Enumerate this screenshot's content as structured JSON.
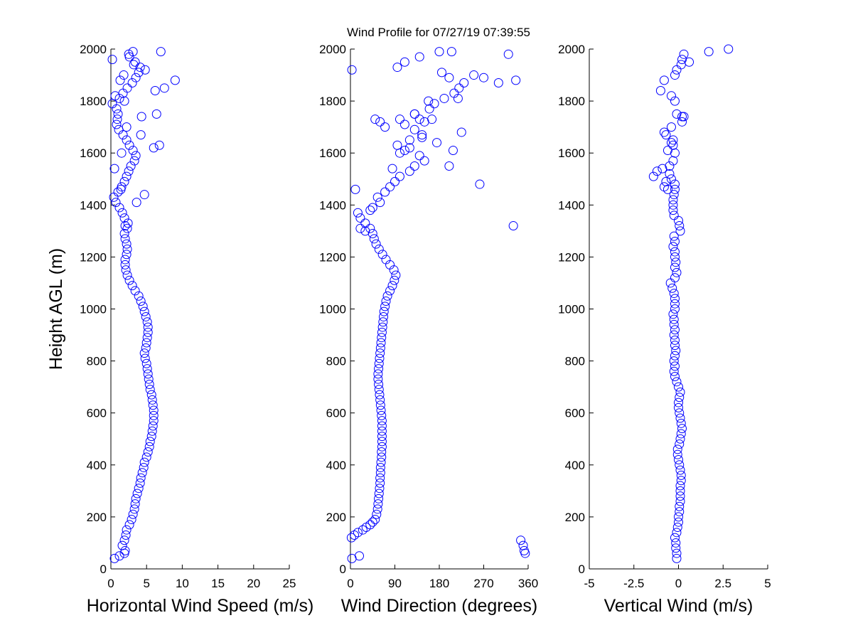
{
  "figure_title": "Wind Profile for  07/27/19 07:39:55",
  "colors": {
    "marker": "#0000ff",
    "axes": "#000000",
    "background": "#ffffff"
  },
  "chart_data": [
    {
      "type": "scatter",
      "marker": "open-circle",
      "xlabel": "Horizontal Wind Speed (m/s)",
      "ylabel": "Height AGL (m)",
      "xlim": [
        0,
        25
      ],
      "ylim": [
        0,
        2000
      ],
      "xticks": [
        0,
        5,
        10,
        15,
        20,
        25
      ],
      "xtick_labels": [
        "0",
        "5",
        "10",
        "15",
        "20",
        "25"
      ],
      "yticks": [
        0,
        200,
        400,
        600,
        800,
        1000,
        1200,
        1400,
        1600,
        1800,
        2000
      ],
      "ytick_labels": [
        "0",
        "200",
        "400",
        "600",
        "800",
        "1000",
        "1200",
        "1400",
        "1600",
        "1800",
        "2000"
      ],
      "grid": false,
      "x": [
        0.5,
        1.2,
        1.9,
        2.0,
        1.6,
        1.9,
        2.1,
        2.2,
        2.6,
        2.9,
        3.1,
        3.3,
        3.4,
        3.5,
        3.7,
        3.9,
        4.1,
        4.2,
        4.4,
        4.6,
        4.7,
        5.0,
        5.2,
        5.4,
        5.5,
        5.7,
        5.8,
        5.9,
        6.0,
        6.0,
        6.0,
        5.9,
        5.8,
        5.7,
        5.5,
        5.4,
        5.3,
        5.2,
        5.1,
        5.0,
        4.8,
        4.7,
        4.9,
        5.0,
        5.1,
        5.2,
        5.2,
        5.1,
        4.9,
        4.7,
        4.5,
        4.2,
        3.9,
        3.4,
        3.0,
        2.6,
        2.3,
        2.1,
        2.0,
        2.0,
        2.2,
        2.3,
        2.2,
        2.0,
        1.9,
        2.3,
        2.4,
        1.9,
        1.6,
        1.2,
        0.7,
        0.4,
        1.0,
        1.5,
        1.9,
        2.2,
        2.5,
        2.8,
        3.3,
        3.5,
        3.1,
        2.6,
        2.2,
        1.7,
        1.1,
        0.8,
        0.9,
        1.0,
        0.8,
        0.2,
        1.2,
        1.7,
        2.3,
        3.0,
        3.5,
        3.9,
        4.1,
        3.4,
        2.6,
        3.1,
        1.3,
        0.6,
        1.9,
        4.3,
        2.2,
        1.5,
        0.5,
        2.0,
        1.4,
        4.7,
        3.6,
        4.2,
        1.8,
        3.2,
        4.8,
        6.4,
        2.5,
        0.2,
        7.0,
        6.2,
        7.5,
        9.0,
        6.8,
        6.0
      ],
      "y": [
        40,
        50,
        60,
        70,
        90,
        110,
        130,
        150,
        170,
        190,
        210,
        230,
        250,
        270,
        290,
        310,
        330,
        350,
        370,
        390,
        410,
        430,
        450,
        470,
        490,
        510,
        530,
        550,
        570,
        590,
        610,
        630,
        650,
        670,
        690,
        710,
        730,
        750,
        770,
        790,
        810,
        830,
        850,
        870,
        890,
        910,
        930,
        950,
        970,
        990,
        1010,
        1030,
        1050,
        1070,
        1090,
        1110,
        1130,
        1150,
        1170,
        1190,
        1210,
        1230,
        1250,
        1270,
        1290,
        1310,
        1330,
        1350,
        1370,
        1390,
        1410,
        1430,
        1450,
        1470,
        1490,
        1510,
        1530,
        1550,
        1570,
        1590,
        1610,
        1630,
        1650,
        1670,
        1690,
        1710,
        1730,
        1750,
        1770,
        1790,
        1810,
        1830,
        1850,
        1870,
        1890,
        1910,
        1930,
        1950,
        1970,
        1990,
        1880,
        1820,
        1800,
        1740,
        1700,
        1600,
        1540,
        1320,
        1460,
        1440,
        1410,
        1670,
        1900,
        1940,
        1920,
        1750,
        1980,
        1960,
        1990,
        1840,
        1850,
        1880,
        1630,
        1620
      ]
    },
    {
      "type": "scatter",
      "marker": "open-circle",
      "xlabel": "Wind Direction (degrees)",
      "ylabel": "",
      "xlim": [
        0,
        360
      ],
      "ylim": [
        0,
        2000
      ],
      "xticks": [
        0,
        90,
        180,
        270,
        360
      ],
      "xtick_labels": [
        "0",
        "90",
        "180",
        "270",
        "360"
      ],
      "yticks": [
        0,
        200,
        400,
        600,
        800,
        1000,
        1200,
        1400,
        1600,
        1800,
        2000
      ],
      "ytick_labels": [
        "0",
        "200",
        "400",
        "600",
        "800",
        "1000",
        "1200",
        "1400",
        "1600",
        "1800",
        "2000"
      ],
      "grid": false,
      "x": [
        3,
        18,
        2,
        8,
        15,
        25,
        32,
        40,
        45,
        50,
        53,
        55,
        56,
        57,
        58,
        59,
        60,
        60,
        61,
        61,
        62,
        63,
        63,
        64,
        64,
        64,
        64,
        64,
        64,
        63,
        62,
        61,
        60,
        59,
        58,
        57,
        56,
        56,
        57,
        58,
        59,
        60,
        61,
        62,
        63,
        64,
        65,
        66,
        67,
        68,
        70,
        72,
        75,
        80,
        85,
        89,
        92,
        88,
        80,
        72,
        65,
        58,
        52,
        48,
        45,
        40,
        30,
        20,
        15,
        45,
        60,
        55,
        70,
        80,
        90,
        100,
        120,
        130,
        150,
        140,
        110,
        95,
        120,
        145,
        130,
        110,
        100,
        130,
        160,
        170,
        190,
        210,
        220,
        230,
        200,
        185,
        95,
        110,
        140,
        205,
        250,
        270,
        300,
        320,
        330,
        345,
        350,
        352,
        354,
        335,
        262,
        208,
        175,
        158,
        218,
        180,
        200,
        225,
        165,
        150,
        145,
        140,
        130,
        120,
        100,
        85,
        70,
        60,
        50,
        40,
        30,
        20,
        10,
        3
      ],
      "y": [
        40,
        50,
        120,
        130,
        140,
        150,
        160,
        170,
        180,
        190,
        210,
        230,
        250,
        270,
        290,
        310,
        330,
        350,
        370,
        390,
        410,
        430,
        450,
        470,
        490,
        510,
        530,
        550,
        570,
        590,
        610,
        630,
        650,
        670,
        690,
        710,
        730,
        750,
        770,
        790,
        810,
        830,
        850,
        870,
        890,
        910,
        930,
        950,
        970,
        990,
        1010,
        1030,
        1050,
        1070,
        1090,
        1110,
        1130,
        1150,
        1170,
        1190,
        1210,
        1230,
        1250,
        1270,
        1290,
        1310,
        1330,
        1350,
        1370,
        1390,
        1410,
        1430,
        1450,
        1470,
        1490,
        1510,
        1530,
        1550,
        1570,
        1590,
        1610,
        1630,
        1650,
        1670,
        1690,
        1710,
        1730,
        1750,
        1770,
        1790,
        1810,
        1830,
        1850,
        1870,
        1890,
        1910,
        1930,
        1950,
        1970,
        1990,
        1900,
        1890,
        1870,
        1980,
        1320,
        110,
        90,
        70,
        60,
        1880,
        1480,
        1610,
        1640,
        1800,
        1810,
        1990,
        1550,
        1680,
        1730,
        1720,
        1660,
        1730,
        1750,
        1620,
        1600,
        1540,
        1700,
        1720,
        1730,
        1380,
        1300,
        1310,
        1460,
        1920
      ]
    },
    {
      "type": "scatter",
      "marker": "open-circle",
      "xlabel": "Vertical Wind (m/s)",
      "ylabel": "",
      "xlim": [
        -5,
        5
      ],
      "ylim": [
        0,
        2000
      ],
      "xticks": [
        -5,
        -2.5,
        0,
        2.5,
        5
      ],
      "xtick_labels": [
        "-5",
        "-2.5",
        "0",
        "2.5",
        "5"
      ],
      "yticks": [
        0,
        200,
        400,
        600,
        800,
        1000,
        1200,
        1400,
        1600,
        1800,
        2000
      ],
      "ytick_labels": [
        "0",
        "200",
        "400",
        "600",
        "800",
        "1000",
        "1200",
        "1400",
        "1600",
        "1800",
        "2000"
      ],
      "grid": false,
      "x": [
        -0.1,
        -0.1,
        -0.15,
        -0.15,
        -0.2,
        -0.1,
        -0.05,
        0.0,
        0.0,
        0.05,
        0.05,
        0.1,
        0.1,
        0.1,
        0.1,
        0.15,
        0.15,
        0.1,
        0.05,
        0.0,
        -0.05,
        -0.05,
        0.05,
        0.1,
        0.15,
        0.2,
        0.15,
        0.1,
        0.05,
        0.0,
        0.0,
        0.05,
        0.1,
        0.0,
        -0.1,
        -0.2,
        -0.25,
        -0.2,
        -0.25,
        -0.2,
        -0.15,
        -0.2,
        -0.2,
        -0.25,
        -0.2,
        -0.25,
        -0.25,
        -0.3,
        -0.2,
        -0.2,
        -0.2,
        -0.25,
        -0.35,
        -0.45,
        -0.2,
        -0.1,
        -0.2,
        -0.15,
        -0.2,
        -0.2,
        -0.3,
        -0.2,
        -0.25,
        0.1,
        0.05,
        0.0,
        -0.25,
        -0.3,
        -0.3,
        -0.3,
        -0.25,
        -0.2,
        -0.2,
        -0.4,
        -0.5,
        -0.9,
        -1.2,
        -1.4,
        -0.6,
        -0.8,
        -0.7,
        -0.5,
        -0.3,
        -0.2,
        -0.6,
        -0.7,
        -0.8,
        -0.4,
        0.3,
        0.2,
        -0.3,
        -0.4,
        -0.3,
        0.2,
        -0.1,
        -0.2,
        -0.4,
        -1.0,
        -0.8,
        -0.2,
        -0.1,
        0.15,
        0.6,
        0.2,
        0.3,
        1.7,
        2.8
      ],
      "y": [
        40,
        60,
        80,
        100,
        120,
        140,
        160,
        180,
        200,
        220,
        240,
        260,
        280,
        300,
        320,
        340,
        360,
        380,
        400,
        420,
        440,
        460,
        480,
        500,
        520,
        540,
        560,
        580,
        600,
        620,
        640,
        660,
        680,
        700,
        720,
        740,
        760,
        780,
        800,
        820,
        840,
        860,
        880,
        900,
        920,
        940,
        960,
        980,
        1000,
        1020,
        1040,
        1060,
        1080,
        1100,
        1120,
        1140,
        1160,
        1180,
        1200,
        1220,
        1240,
        1260,
        1280,
        1300,
        1320,
        1340,
        1360,
        1380,
        1400,
        1420,
        1440,
        1460,
        1480,
        1500,
        1520,
        1540,
        1530,
        1510,
        1460,
        1470,
        1490,
        1550,
        1570,
        1600,
        1610,
        1670,
        1680,
        1700,
        1740,
        1720,
        1650,
        1640,
        1630,
        1740,
        1750,
        1800,
        1820,
        1840,
        1880,
        1900,
        1920,
        1940,
        1950,
        1960,
        1980,
        1990,
        2000
      ]
    }
  ]
}
